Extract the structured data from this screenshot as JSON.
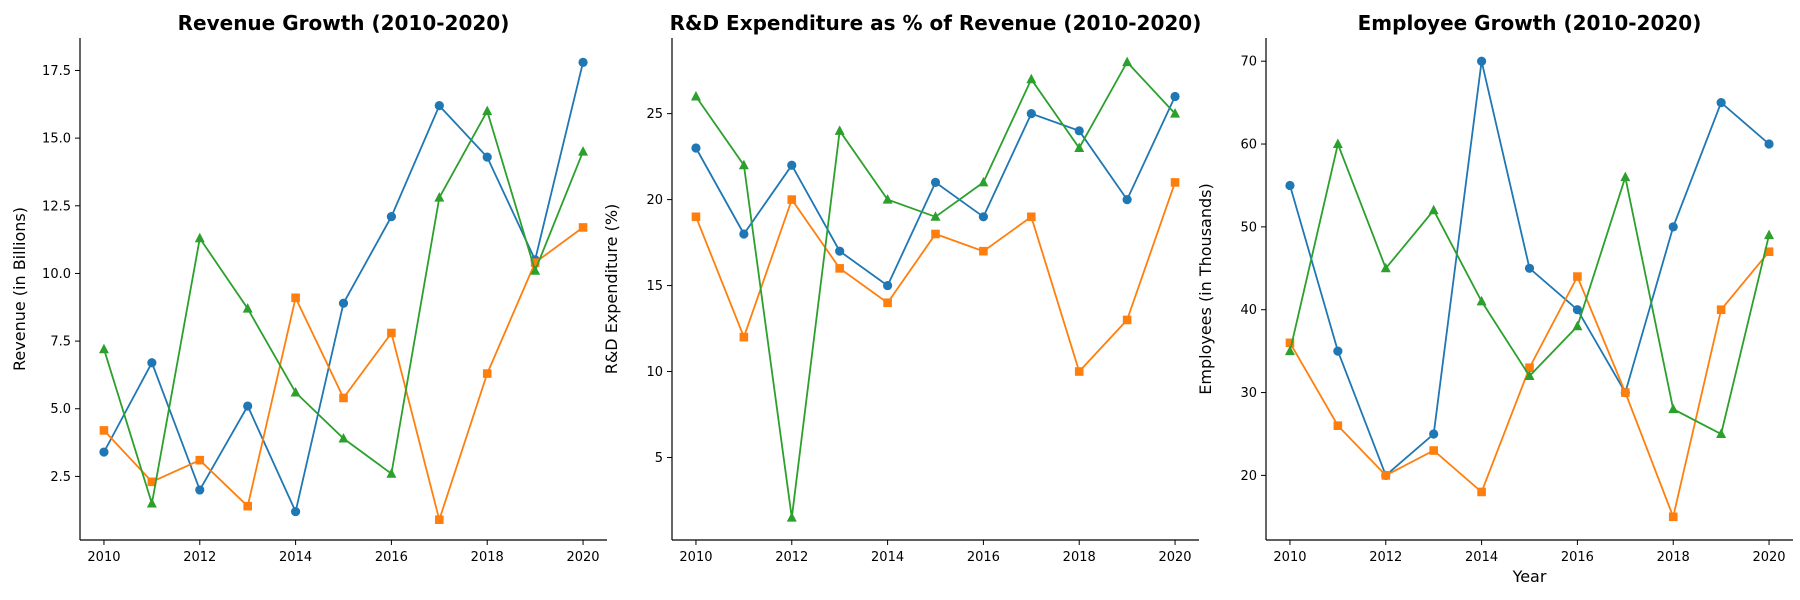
{
  "colors": {
    "series_1": "#1f77b4",
    "series_2": "#ff7f0e",
    "series_3": "#2ca02c"
  },
  "chart_data": [
    {
      "type": "line",
      "title": "Revenue Growth (2010-2020)",
      "xlabel": "",
      "ylabel": "Revenue (in Billions)",
      "x": [
        2010,
        2011,
        2012,
        2013,
        2014,
        2015,
        2016,
        2017,
        2018,
        2019,
        2020
      ],
      "xticks": [
        2010,
        2012,
        2014,
        2016,
        2018,
        2020
      ],
      "yticks": [
        2.5,
        5.0,
        7.5,
        10.0,
        12.5,
        15.0,
        17.5
      ],
      "ytick_labels": [
        "2.5",
        "5.0",
        "7.5",
        "10.0",
        "12.5",
        "15.0",
        "17.5"
      ],
      "xlim": [
        2009.5,
        2020.5
      ],
      "ylim": [
        0.15,
        18.7
      ],
      "grid": false,
      "series": [
        {
          "marker": "circle",
          "color": "#1f77b4",
          "values": [
            3.4,
            6.7,
            2.0,
            5.1,
            1.2,
            8.9,
            12.1,
            16.2,
            14.3,
            10.5,
            17.8
          ]
        },
        {
          "marker": "square",
          "color": "#ff7f0e",
          "values": [
            4.2,
            2.3,
            3.1,
            1.4,
            9.1,
            5.4,
            7.8,
            0.9,
            6.3,
            10.4,
            11.7
          ]
        },
        {
          "marker": "triangle",
          "color": "#2ca02c",
          "values": [
            7.2,
            1.5,
            11.3,
            8.7,
            5.6,
            3.9,
            2.6,
            12.8,
            16.0,
            10.1,
            14.5
          ]
        }
      ]
    },
    {
      "type": "line",
      "title": "R&D Expenditure as % of Revenue (2010-2020)",
      "xlabel": "",
      "ylabel": "R&D Expenditure (%)",
      "x": [
        2010,
        2011,
        2012,
        2013,
        2014,
        2015,
        2016,
        2017,
        2018,
        2019,
        2020
      ],
      "xticks": [
        2010,
        2012,
        2014,
        2016,
        2018,
        2020
      ],
      "yticks": [
        5,
        10,
        15,
        20,
        25
      ],
      "ytick_labels": [
        "5",
        "10",
        "15",
        "20",
        "25"
      ],
      "xlim": [
        2009.5,
        2020.5
      ],
      "ylim": [
        0.2,
        29.4
      ],
      "grid": false,
      "series": [
        {
          "marker": "circle",
          "color": "#1f77b4",
          "values": [
            23,
            18,
            22,
            17,
            15,
            21,
            19,
            25,
            24,
            20,
            26
          ]
        },
        {
          "marker": "square",
          "color": "#ff7f0e",
          "values": [
            19,
            12,
            20,
            16,
            14,
            18,
            17,
            19,
            10,
            13,
            21
          ]
        },
        {
          "marker": "triangle",
          "color": "#2ca02c",
          "values": [
            26,
            22,
            1.5,
            24,
            20,
            19,
            21,
            27,
            23,
            28,
            25
          ]
        }
      ]
    },
    {
      "type": "line",
      "title": "Employee Growth (2010-2020)",
      "xlabel": "Year",
      "ylabel": "Employees (in Thousands)",
      "x": [
        2010,
        2011,
        2012,
        2013,
        2014,
        2015,
        2016,
        2017,
        2018,
        2019,
        2020
      ],
      "xticks": [
        2010,
        2012,
        2014,
        2016,
        2018,
        2020
      ],
      "yticks": [
        20,
        30,
        40,
        50,
        60,
        70
      ],
      "ytick_labels": [
        "20",
        "30",
        "40",
        "50",
        "60",
        "70"
      ],
      "xlim": [
        2009.5,
        2020.5
      ],
      "ylim": [
        12.2,
        72.8
      ],
      "grid": false,
      "series": [
        {
          "marker": "circle",
          "color": "#1f77b4",
          "values": [
            55,
            35,
            20,
            25,
            70,
            45,
            40,
            30,
            50,
            65,
            60
          ]
        },
        {
          "marker": "square",
          "color": "#ff7f0e",
          "values": [
            36,
            26,
            20,
            23,
            18,
            33,
            44,
            30,
            15,
            40,
            47
          ]
        },
        {
          "marker": "triangle",
          "color": "#2ca02c",
          "values": [
            35,
            60,
            45,
            52,
            41,
            32,
            38,
            56,
            28,
            25,
            49
          ]
        }
      ]
    }
  ]
}
